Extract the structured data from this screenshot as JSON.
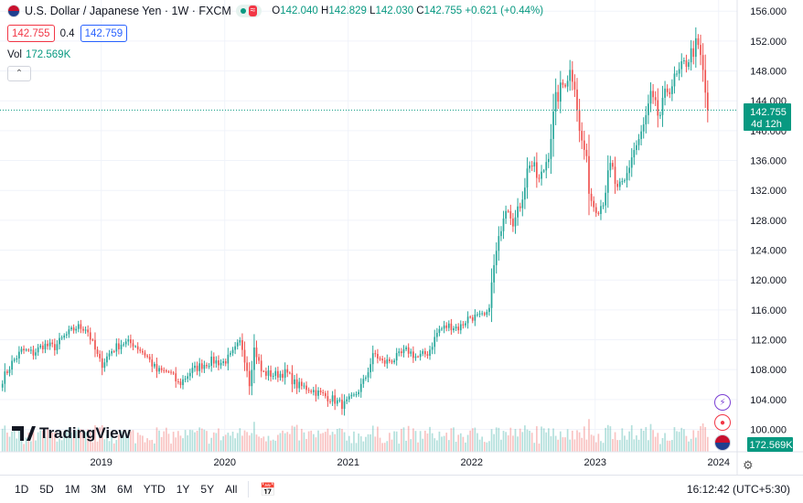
{
  "header": {
    "symbol_title": "U.S. Dollar / Japanese Yen · 1W · FXCM",
    "open_label": "O",
    "open": "142.040",
    "high_label": "H",
    "high": "142.829",
    "low_label": "L",
    "low": "142.030",
    "close_label": "C",
    "close": "142.755",
    "change": "+0.621 (+0.44%)",
    "sell_price": "142.755",
    "spread": "0.4",
    "buy_price": "142.759",
    "volume_label": "Vol",
    "volume": "172.569K",
    "live_icon": "dot-icon",
    "wave_icon": "wave-icon"
  },
  "branding": {
    "logo_text": "TradingView"
  },
  "price_tag": {
    "price": "142.755",
    "countdown": "4d 12h"
  },
  "volume_tag": {
    "value": "172.569K"
  },
  "bottom_bar": {
    "timeframes": [
      "1D",
      "5D",
      "1M",
      "3M",
      "6M",
      "YTD",
      "1Y",
      "5Y",
      "All"
    ],
    "time": "16:12:42",
    "timezone": "(UTC+5:30)"
  },
  "colors": {
    "up": "#26a69a",
    "down": "#ef5350",
    "accent": "#089981",
    "grid": "#f0f3fa"
  },
  "chart_data": {
    "type": "candlestick",
    "title": "U.S. Dollar / Japanese Yen · 1W · FXCM",
    "xlabel": "",
    "ylabel": "",
    "y_ticks": [
      "156.000",
      "152.000",
      "148.000",
      "144.000",
      "140.000",
      "136.000",
      "132.000",
      "128.000",
      "124.000",
      "120.000",
      "116.000",
      "112.000",
      "108.000",
      "104.000",
      "100.000"
    ],
    "ylim": [
      97,
      157.5
    ],
    "x_ticks": [
      {
        "label": "2019",
        "t": 2019.0
      },
      {
        "label": "2020",
        "t": 2020.0
      },
      {
        "label": "2021",
        "t": 2021.0
      },
      {
        "label": "2022",
        "t": 2022.0
      },
      {
        "label": "2023",
        "t": 2023.0
      },
      {
        "label": "2024",
        "t": 2024.0
      }
    ],
    "xlim": [
      2018.18,
      2024.15
    ],
    "last_price": 142.755,
    "closes": [
      [
        2018.2,
        106.7
      ],
      [
        2018.28,
        109.0
      ],
      [
        2018.36,
        110.6
      ],
      [
        2018.45,
        110.2
      ],
      [
        2018.53,
        111.3
      ],
      [
        2018.62,
        111.0
      ],
      [
        2018.7,
        112.4
      ],
      [
        2018.8,
        113.7
      ],
      [
        2018.88,
        113.6
      ],
      [
        2018.96,
        110.2
      ],
      [
        2019.0,
        108.6
      ],
      [
        2019.08,
        110.5
      ],
      [
        2019.17,
        111.6
      ],
      [
        2019.26,
        111.5
      ],
      [
        2019.36,
        110.0
      ],
      [
        2019.45,
        107.8
      ],
      [
        2019.55,
        107.7
      ],
      [
        2019.63,
        106.0
      ],
      [
        2019.72,
        107.7
      ],
      [
        2019.8,
        108.5
      ],
      [
        2019.9,
        109.2
      ],
      [
        2019.98,
        108.9
      ],
      [
        2020.05,
        109.8
      ],
      [
        2020.13,
        111.8
      ],
      [
        2020.18,
        108.2
      ],
      [
        2020.2,
        106.3
      ],
      [
        2020.24,
        111.0
      ],
      [
        2020.3,
        107.6
      ],
      [
        2020.4,
        107.3
      ],
      [
        2020.5,
        107.6
      ],
      [
        2020.58,
        105.9
      ],
      [
        2020.68,
        105.5
      ],
      [
        2020.78,
        104.7
      ],
      [
        2020.88,
        104.0
      ],
      [
        2020.96,
        103.2
      ],
      [
        2021.05,
        104.4
      ],
      [
        2021.13,
        106.5
      ],
      [
        2021.21,
        110.2
      ],
      [
        2021.28,
        108.9
      ],
      [
        2021.38,
        109.5
      ],
      [
        2021.48,
        110.6
      ],
      [
        2021.56,
        109.6
      ],
      [
        2021.65,
        110.3
      ],
      [
        2021.73,
        113.3
      ],
      [
        2021.82,
        113.9
      ],
      [
        2021.9,
        113.6
      ],
      [
        2021.98,
        115.1
      ],
      [
        2022.06,
        115.0
      ],
      [
        2022.13,
        115.2
      ],
      [
        2022.18,
        121.8
      ],
      [
        2022.23,
        126.4
      ],
      [
        2022.28,
        130.5
      ],
      [
        2022.34,
        127.5
      ],
      [
        2022.4,
        130.8
      ],
      [
        2022.47,
        136.0
      ],
      [
        2022.55,
        133.0
      ],
      [
        2022.62,
        136.9
      ],
      [
        2022.68,
        144.0
      ],
      [
        2022.76,
        146.9
      ],
      [
        2022.8,
        148.0
      ],
      [
        2022.84,
        146.3
      ],
      [
        2022.87,
        139.8
      ],
      [
        2022.92,
        137.0
      ],
      [
        2022.96,
        131.1
      ],
      [
        2023.02,
        129.2
      ],
      [
        2023.06,
        130.6
      ],
      [
        2023.13,
        135.5
      ],
      [
        2023.18,
        131.6
      ],
      [
        2023.24,
        133.0
      ],
      [
        2023.3,
        136.9
      ],
      [
        2023.38,
        139.6
      ],
      [
        2023.45,
        144.4
      ],
      [
        2023.52,
        141.7
      ],
      [
        2023.58,
        145.4
      ],
      [
        2023.66,
        147.1
      ],
      [
        2023.74,
        149.3
      ],
      [
        2023.82,
        151.5
      ],
      [
        2023.86,
        149.5
      ],
      [
        2023.89,
        145.2
      ],
      [
        2023.92,
        142.755
      ]
    ]
  }
}
